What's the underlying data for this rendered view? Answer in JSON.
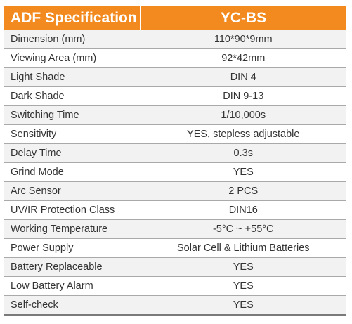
{
  "table": {
    "header": {
      "label": "ADF Specification",
      "model": "YC-BS"
    },
    "rows": [
      {
        "label": "Dimension (mm)",
        "value": "110*90*9mm"
      },
      {
        "label": "Viewing Area (mm)",
        "value": "92*42mm"
      },
      {
        "label": "Light Shade",
        "value": "DIN 4"
      },
      {
        "label": "Dark Shade",
        "value": "DIN 9-13"
      },
      {
        "label": "Switching Time",
        "value": "1/10,000s"
      },
      {
        "label": "Sensitivity",
        "value": "YES, stepless adjustable"
      },
      {
        "label": "Delay Time",
        "value": "0.3s"
      },
      {
        "label": "Grind Mode",
        "value": "YES"
      },
      {
        "label": "Arc Sensor",
        "value": "2 PCS"
      },
      {
        "label": "UV/IR Protection Class",
        "value": "DIN16"
      },
      {
        "label": "Working Temperature",
        "value": "-5°C ~ +55°C"
      },
      {
        "label": "Power Supply",
        "value": "Solar Cell & Lithium Batteries"
      },
      {
        "label": "Battery Replaceable",
        "value": "YES"
      },
      {
        "label": "Low Battery Alarm",
        "value": "YES"
      },
      {
        "label": "Self-check",
        "value": "YES"
      }
    ]
  },
  "colors": {
    "header_bg": "#f28a1f",
    "header_text": "#ffffff",
    "row_alt_bg": "#f2f2f2",
    "text": "#333333"
  }
}
